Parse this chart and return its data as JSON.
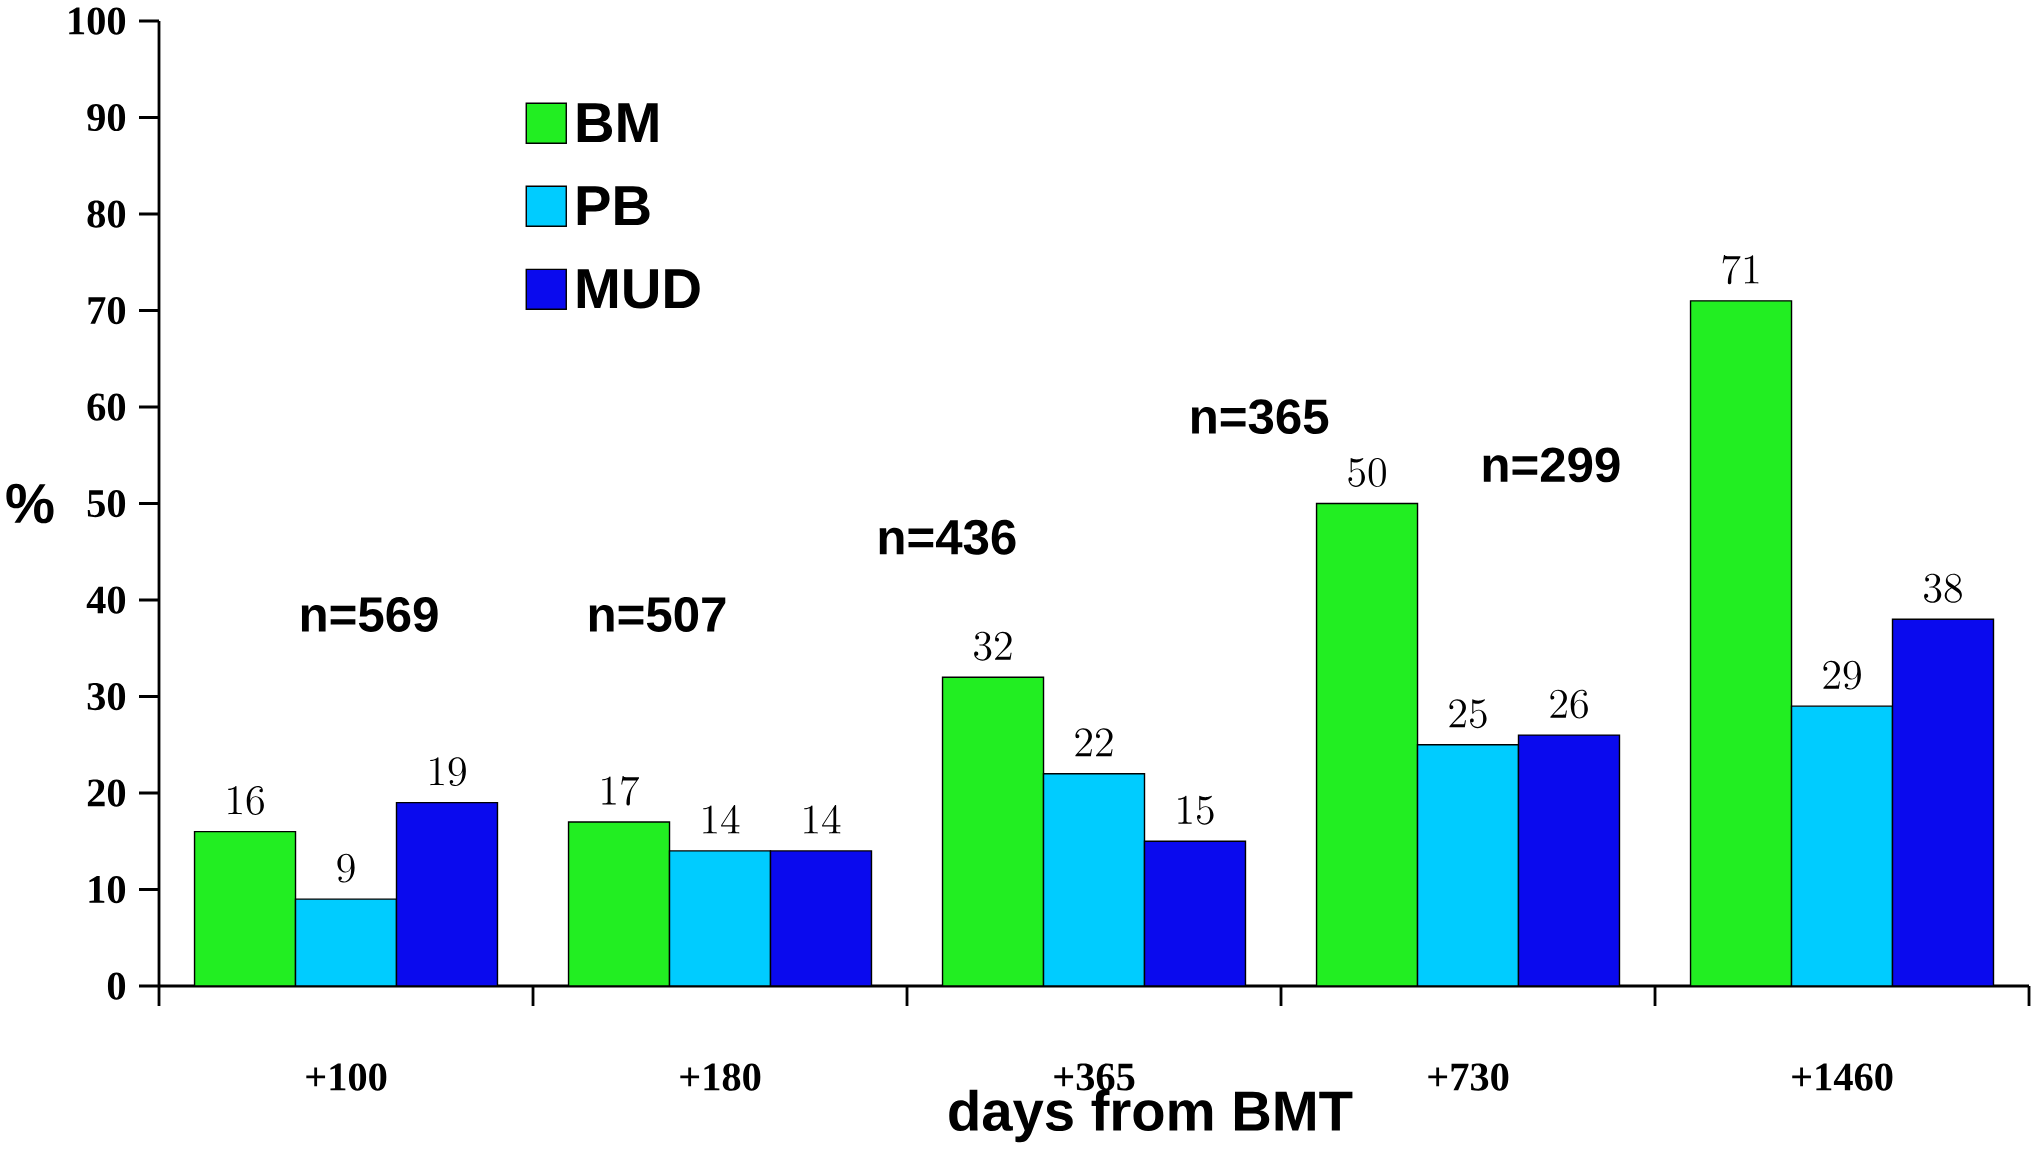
{
  "chart_data": {
    "type": "bar",
    "categories": [
      "+100",
      "+180",
      "+365",
      "+730",
      "+1460"
    ],
    "series": [
      {
        "name": "BM",
        "color": "#22ee22",
        "values": [
          16,
          17,
          32,
          50,
          71
        ]
      },
      {
        "name": "PB",
        "color": "#00ccff",
        "values": [
          9,
          14,
          22,
          25,
          29
        ]
      },
      {
        "name": "MUD",
        "color": "#0a0aee",
        "values": [
          19,
          14,
          15,
          26,
          38
        ]
      }
    ],
    "xlabel": "days from BMT",
    "ylabel": "%",
    "ylim": [
      0,
      100
    ],
    "yticks": [
      0,
      10,
      20,
      30,
      40,
      50,
      60,
      70,
      80,
      90,
      100
    ],
    "data_labels": true,
    "legend": "top left",
    "grid": false,
    "annotations": [
      "n=569",
      "n=507",
      "n=436",
      "n=365",
      "n=299"
    ]
  }
}
